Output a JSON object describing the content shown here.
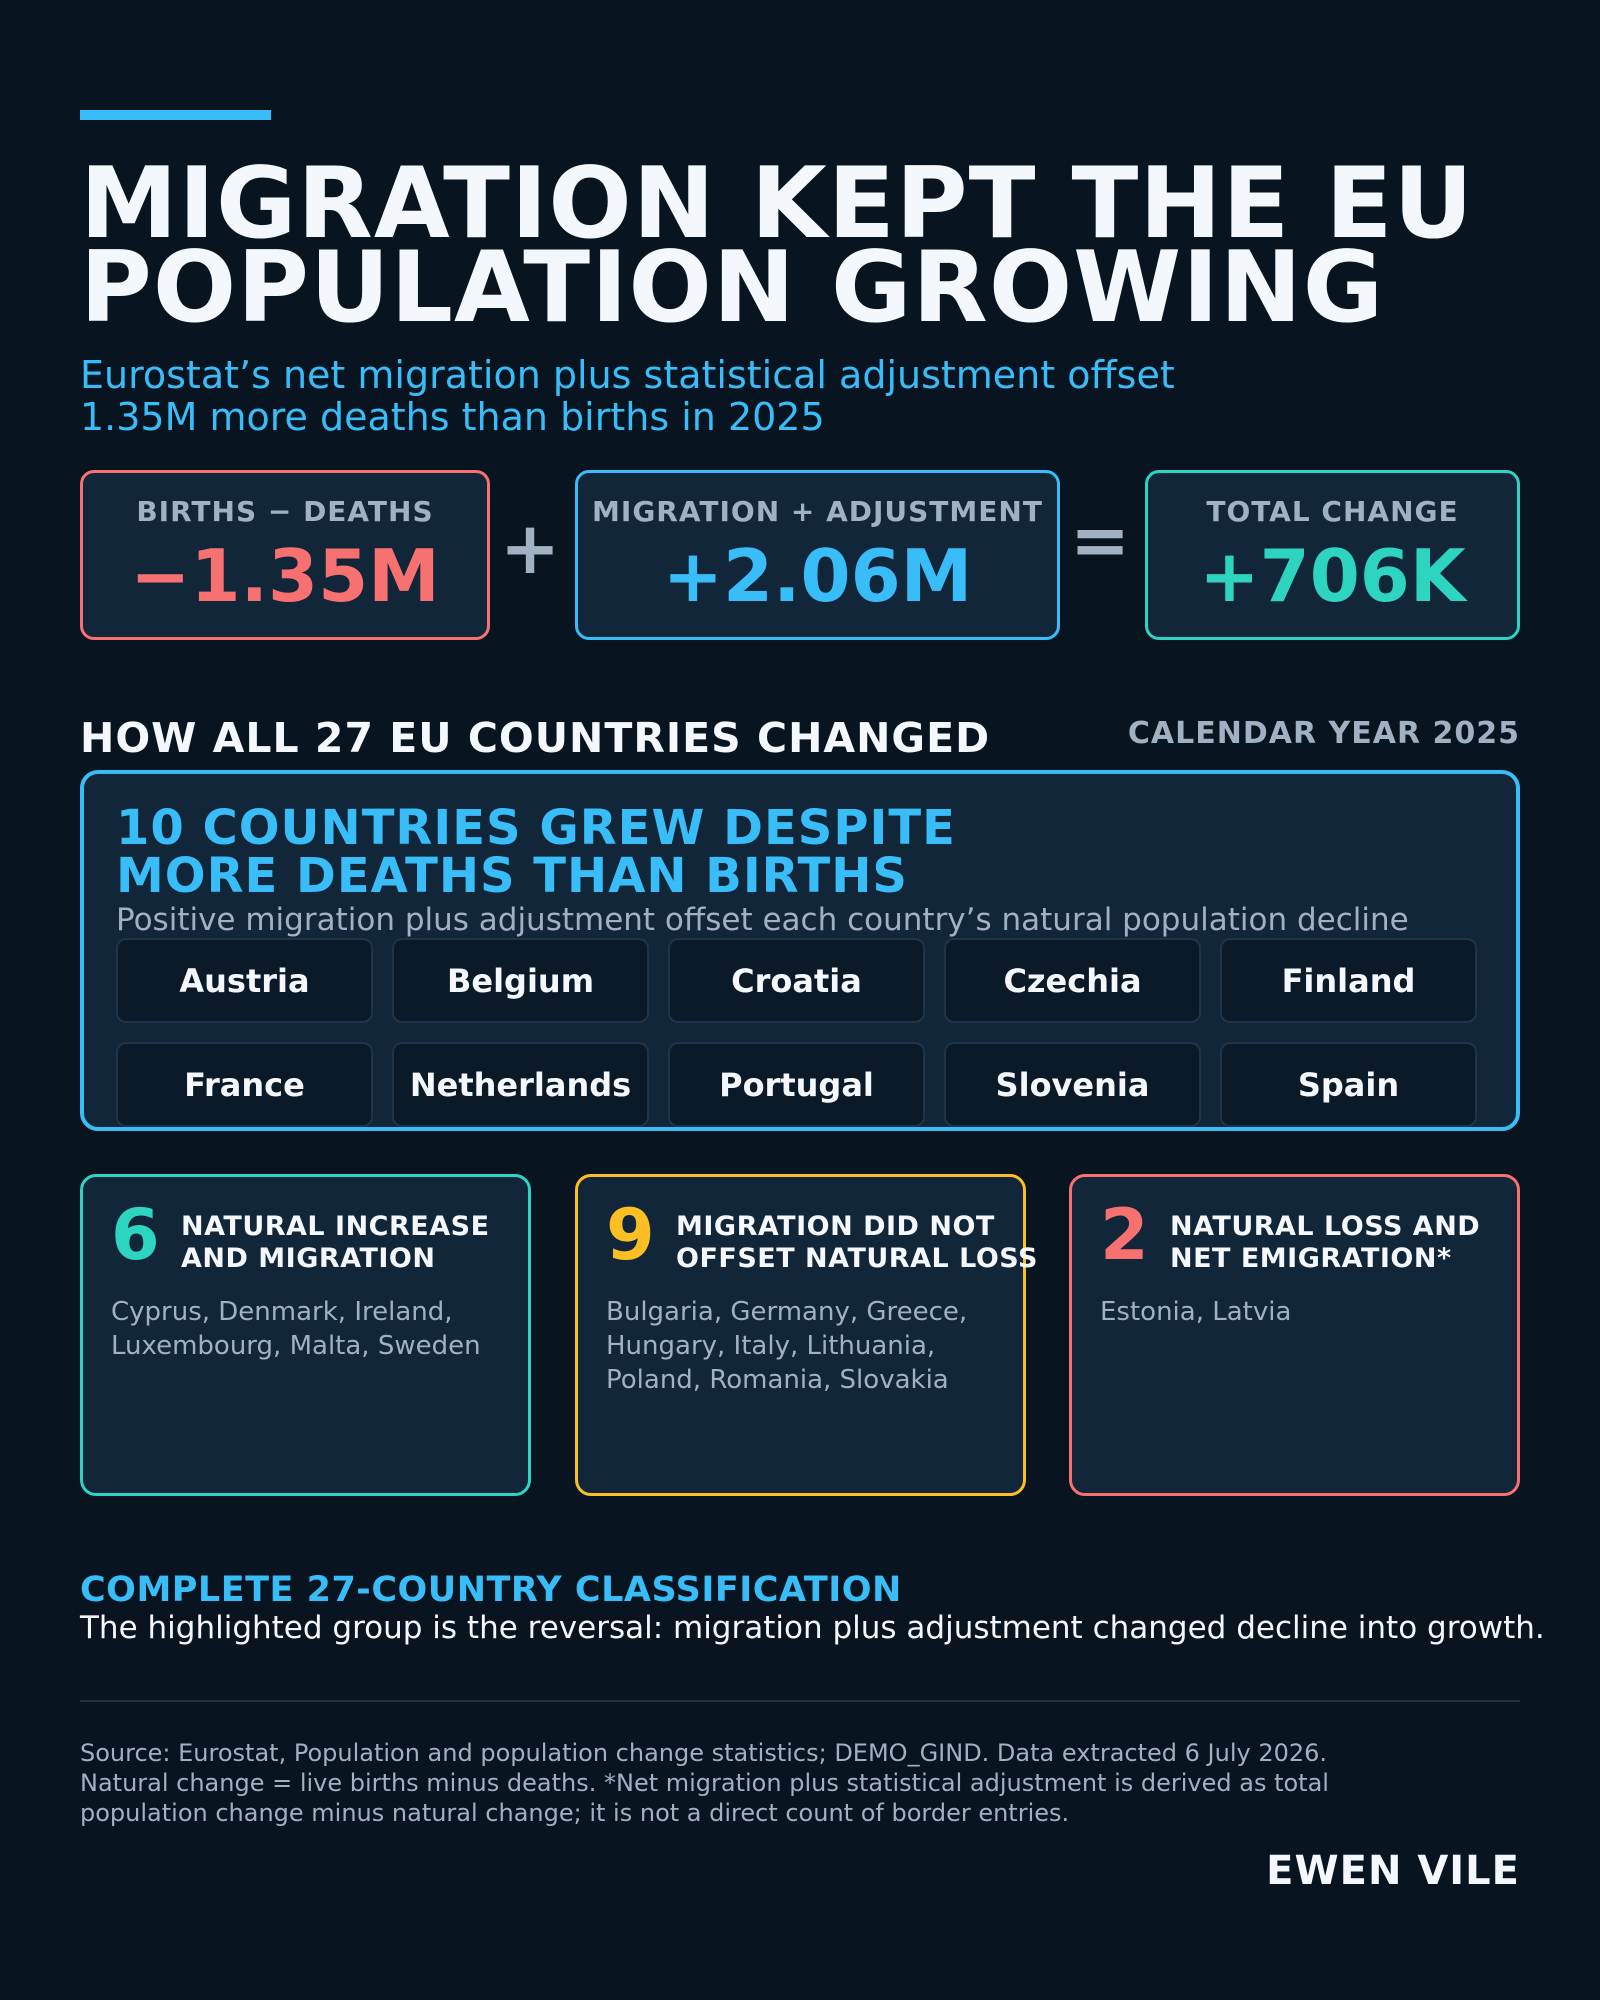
{
  "title": {
    "line1": "MIGRATION KEPT THE EU",
    "line2": "POPULATION GROWING"
  },
  "subtitle": {
    "line1": "Eurostat’s net migration plus statistical adjustment offset",
    "line2": "1.35M more deaths than births in 2025"
  },
  "equation": {
    "natural": {
      "label": "BIRTHS − DEATHS",
      "value": "−1.35M",
      "color": "#f87171"
    },
    "plus": "+",
    "migration": {
      "label": "MIGRATION + ADJUSTMENT",
      "value": "+2.06M",
      "color": "#38bdf8"
    },
    "equals": "=",
    "total": {
      "label": "TOTAL CHANGE",
      "value": "+706K",
      "color": "#2dd4bf"
    }
  },
  "section": {
    "title": "HOW ALL 27 EU COUNTRIES CHANGED",
    "year": "CALENDAR YEAR 2025"
  },
  "highlight": {
    "title_line1": "10 COUNTRIES GREW DESPITE",
    "title_line2": "MORE DEATHS THAN BIRTHS",
    "description": "Positive migration plus adjustment offset each country’s natural population decline",
    "countries": [
      "Austria",
      "Belgium",
      "Croatia",
      "Czechia",
      "Finland",
      "France",
      "Netherlands",
      "Portugal",
      "Slovenia",
      "Spain"
    ]
  },
  "categories": [
    {
      "count": "6",
      "color": "#2dd4bf",
      "heading_line1": "NATURAL INCREASE",
      "heading_line2": "AND MIGRATION",
      "list_line1": "Cyprus, Denmark, Ireland,",
      "list_line2": "Luxembourg, Malta, Sweden",
      "list_line3": ""
    },
    {
      "count": "9",
      "color": "#fbbf24",
      "heading_line1": "MIGRATION DID NOT",
      "heading_line2": "OFFSET NATURAL LOSS",
      "list_line1": "Bulgaria, Germany, Greece,",
      "list_line2": "Hungary, Italy, Lithuania,",
      "list_line3": "Poland, Romania, Slovakia"
    },
    {
      "count": "2",
      "color": "#f87171",
      "heading_line1": "NATURAL LOSS AND",
      "heading_line2": "NET EMIGRATION*",
      "list_line1": "Estonia, Latvia",
      "list_line2": "",
      "list_line3": ""
    }
  ],
  "complete": {
    "title": "COMPLETE 27-COUNTRY CLASSIFICATION",
    "description": "The highlighted group is the reversal: migration plus adjustment changed decline into growth."
  },
  "source": {
    "line1": "Source: Eurostat, Population and population change statistics; DEMO_GIND. Data extracted 6 July 2026.",
    "line2": "Natural change = live births minus deaths. *Net migration plus statistical adjustment is derived as total",
    "line3": "population change minus natural change; it is not a direct count of border entries."
  },
  "author": "EWEN VILE"
}
